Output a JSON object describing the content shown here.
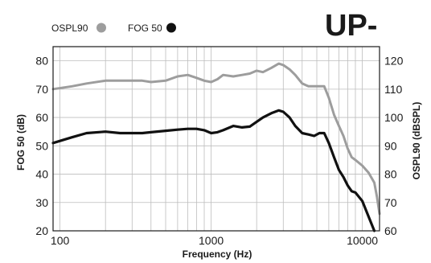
{
  "model_label": "UP-",
  "chart_data": {
    "type": "line",
    "xlabel": "Frequency (Hz)",
    "ylabel_left": "FOG 50 (dB)",
    "ylabel_right": "OSPL90 (dBSPL)",
    "x_scale": "log",
    "xlim": [
      90,
      13000
    ],
    "ylim_left": [
      20,
      85
    ],
    "ylim_right": [
      60,
      125
    ],
    "x_ticks": [
      100,
      1000,
      10000
    ],
    "x_tick_labels": [
      "100",
      "1000",
      "10000"
    ],
    "y_ticks_left": [
      20,
      30,
      40,
      50,
      60,
      70,
      80
    ],
    "y_ticks_right": [
      60,
      70,
      80,
      90,
      100,
      110,
      120
    ],
    "grid": true,
    "legend_position": "top-left",
    "series": [
      {
        "name": "OSPL90",
        "axis": "right",
        "color": "#9d9d9d",
        "x": [
          90,
          120,
          150,
          200,
          250,
          300,
          350,
          400,
          500,
          600,
          700,
          800,
          900,
          1000,
          1100,
          1200,
          1400,
          1600,
          1800,
          2000,
          2200,
          2500,
          2800,
          3000,
          3300,
          3600,
          4000,
          4400,
          4800,
          5200,
          5600,
          6000,
          6500,
          7000,
          7500,
          8000,
          8500,
          9000,
          10000,
          11000,
          12000,
          12500,
          13000
        ],
        "y": [
          110,
          111,
          112,
          113,
          113,
          113,
          113,
          112.5,
          113,
          114.5,
          115,
          114,
          113,
          112.5,
          113.5,
          115,
          114.5,
          115,
          115.5,
          116.5,
          116,
          117.5,
          119,
          118.5,
          117,
          115,
          112,
          111,
          111,
          111,
          111,
          107,
          101,
          97,
          93.5,
          89,
          86,
          85,
          83,
          80.5,
          77,
          72,
          66
        ]
      },
      {
        "name": "FOG 50",
        "axis": "left",
        "color": "#111111",
        "x": [
          90,
          120,
          150,
          200,
          250,
          300,
          350,
          400,
          500,
          600,
          700,
          800,
          900,
          1000,
          1100,
          1200,
          1400,
          1600,
          1800,
          2000,
          2200,
          2500,
          2800,
          3000,
          3300,
          3600,
          4000,
          4400,
          4800,
          5200,
          5600,
          6000,
          6500,
          7000,
          7500,
          8000,
          8500,
          9000,
          10000,
          11000,
          12000
        ],
        "y": [
          51,
          53,
          54.5,
          55,
          54.5,
          54.5,
          54.5,
          54.8,
          55.3,
          55.7,
          56,
          56,
          55.5,
          54.5,
          54.8,
          55.5,
          57,
          56.5,
          56.8,
          58.5,
          60,
          61.5,
          62.5,
          62,
          60,
          57,
          54.5,
          54,
          53.5,
          54.5,
          54.5,
          51,
          46,
          41.5,
          39,
          36,
          34,
          33.5,
          30.5,
          25,
          20
        ]
      }
    ]
  }
}
